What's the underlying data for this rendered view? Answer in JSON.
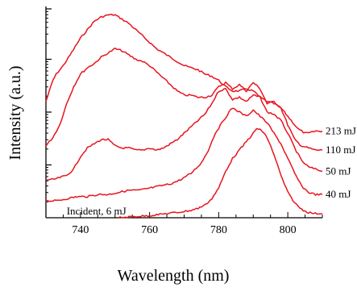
{
  "chart_data": {
    "type": "line",
    "title": "",
    "xlabel": "Wavelength (nm)",
    "ylabel": "Intensity (a.u.)",
    "y_scale": "log",
    "y_tick_labels": "none",
    "xlim": [
      730,
      810
    ],
    "ylim": [
      0,
      1
    ],
    "x_ticks": [
      740,
      760,
      780,
      800
    ],
    "x_tick_labels": [
      "740",
      "760",
      "780",
      "800"
    ],
    "grid": false,
    "legend": "none",
    "line_color": "#e8141e",
    "series": [
      {
        "name": "213 mJ",
        "x": [
          730,
          731,
          732,
          733,
          735,
          737,
          740,
          742,
          744,
          746,
          748,
          750,
          752,
          754,
          756,
          758,
          760,
          762,
          764,
          766,
          768,
          770,
          772,
          774,
          776,
          778,
          780,
          782,
          784,
          786,
          788,
          790,
          792,
          794,
          796,
          798,
          800,
          802,
          803,
          804,
          805,
          806,
          808,
          810
        ],
        "y": [
          0.55,
          0.6,
          0.65,
          0.68,
          0.72,
          0.77,
          0.85,
          0.89,
          0.93,
          0.95,
          0.96,
          0.96,
          0.94,
          0.92,
          0.89,
          0.86,
          0.83,
          0.8,
          0.78,
          0.76,
          0.74,
          0.72,
          0.71,
          0.7,
          0.68,
          0.67,
          0.65,
          0.62,
          0.6,
          0.6,
          0.61,
          0.6,
          0.57,
          0.55,
          0.54,
          0.52,
          0.48,
          0.44,
          0.42,
          0.41,
          0.4,
          0.4,
          0.41,
          0.41
        ]
      },
      {
        "name": "110 mJ",
        "x": [
          730,
          732,
          734,
          736,
          738,
          740,
          742,
          744,
          746,
          748,
          750,
          752,
          754,
          756,
          758,
          760,
          762,
          764,
          766,
          768,
          770,
          772,
          774,
          776,
          778,
          780,
          782,
          784,
          786,
          788,
          790,
          792,
          794,
          796,
          798,
          800,
          802,
          804,
          806,
          808,
          810
        ],
        "y": [
          0.34,
          0.38,
          0.44,
          0.54,
          0.62,
          0.68,
          0.71,
          0.73,
          0.76,
          0.78,
          0.8,
          0.79,
          0.77,
          0.75,
          0.74,
          0.72,
          0.69,
          0.66,
          0.63,
          0.6,
          0.58,
          0.58,
          0.57,
          0.57,
          0.58,
          0.62,
          0.64,
          0.61,
          0.63,
          0.6,
          0.64,
          0.61,
          0.54,
          0.55,
          0.52,
          0.44,
          0.37,
          0.34,
          0.33,
          0.32,
          0.32
        ]
      },
      {
        "name": "50 mJ",
        "x": [
          730,
          732,
          734,
          736,
          738,
          740,
          742,
          744,
          746,
          748,
          750,
          752,
          754,
          756,
          758,
          760,
          762,
          764,
          766,
          768,
          770,
          772,
          774,
          776,
          778,
          780,
          782,
          784,
          786,
          788,
          790,
          792,
          794,
          796,
          798,
          800,
          802,
          804,
          806,
          808,
          810
        ],
        "y": [
          0.18,
          0.18,
          0.19,
          0.2,
          0.23,
          0.29,
          0.33,
          0.35,
          0.37,
          0.37,
          0.34,
          0.33,
          0.33,
          0.32,
          0.32,
          0.33,
          0.32,
          0.33,
          0.35,
          0.37,
          0.4,
          0.43,
          0.46,
          0.49,
          0.54,
          0.6,
          0.61,
          0.56,
          0.57,
          0.55,
          0.58,
          0.57,
          0.5,
          0.49,
          0.46,
          0.4,
          0.33,
          0.27,
          0.24,
          0.23,
          0.22
        ]
      },
      {
        "name": "40 mJ",
        "x": [
          730,
          733,
          736,
          739,
          742,
          745,
          748,
          751,
          754,
          757,
          760,
          763,
          766,
          769,
          772,
          775,
          777,
          779,
          781,
          783,
          784,
          786,
          788,
          790,
          792,
          794,
          796,
          798,
          800,
          802,
          804,
          806,
          808,
          810
        ],
        "y": [
          0.08,
          0.08,
          0.09,
          0.1,
          0.1,
          0.11,
          0.11,
          0.12,
          0.13,
          0.13,
          0.14,
          0.15,
          0.16,
          0.18,
          0.21,
          0.26,
          0.32,
          0.4,
          0.45,
          0.5,
          0.52,
          0.5,
          0.48,
          0.51,
          0.48,
          0.45,
          0.4,
          0.35,
          0.28,
          0.21,
          0.15,
          0.12,
          0.11,
          0.11
        ]
      },
      {
        "name": "Incident, 6 mJ",
        "x": [
          751,
          755,
          760,
          765,
          768,
          770,
          772,
          774,
          776,
          778,
          780,
          782,
          784,
          786,
          788,
          790,
          791,
          792,
          793,
          794,
          796,
          798,
          800,
          802,
          804,
          806,
          808,
          810
        ],
        "y": [
          0.0,
          0.005,
          0.01,
          0.02,
          0.025,
          0.03,
          0.035,
          0.045,
          0.06,
          0.09,
          0.14,
          0.22,
          0.28,
          0.32,
          0.36,
          0.4,
          0.42,
          0.42,
          0.4,
          0.38,
          0.3,
          0.2,
          0.12,
          0.07,
          0.04,
          0.025,
          0.02,
          0.02
        ]
      }
    ],
    "series_labels": [
      {
        "text": "213 mJ",
        "x": 810,
        "y": 0.41
      },
      {
        "text": "110 mJ",
        "x": 810,
        "y": 0.32
      },
      {
        "text": "50 mJ",
        "x": 810,
        "y": 0.22
      },
      {
        "text": "40 mJ",
        "x": 810,
        "y": 0.11
      },
      {
        "text": "Incident, 6 mJ",
        "x": 736,
        "y": 0.03
      }
    ]
  }
}
